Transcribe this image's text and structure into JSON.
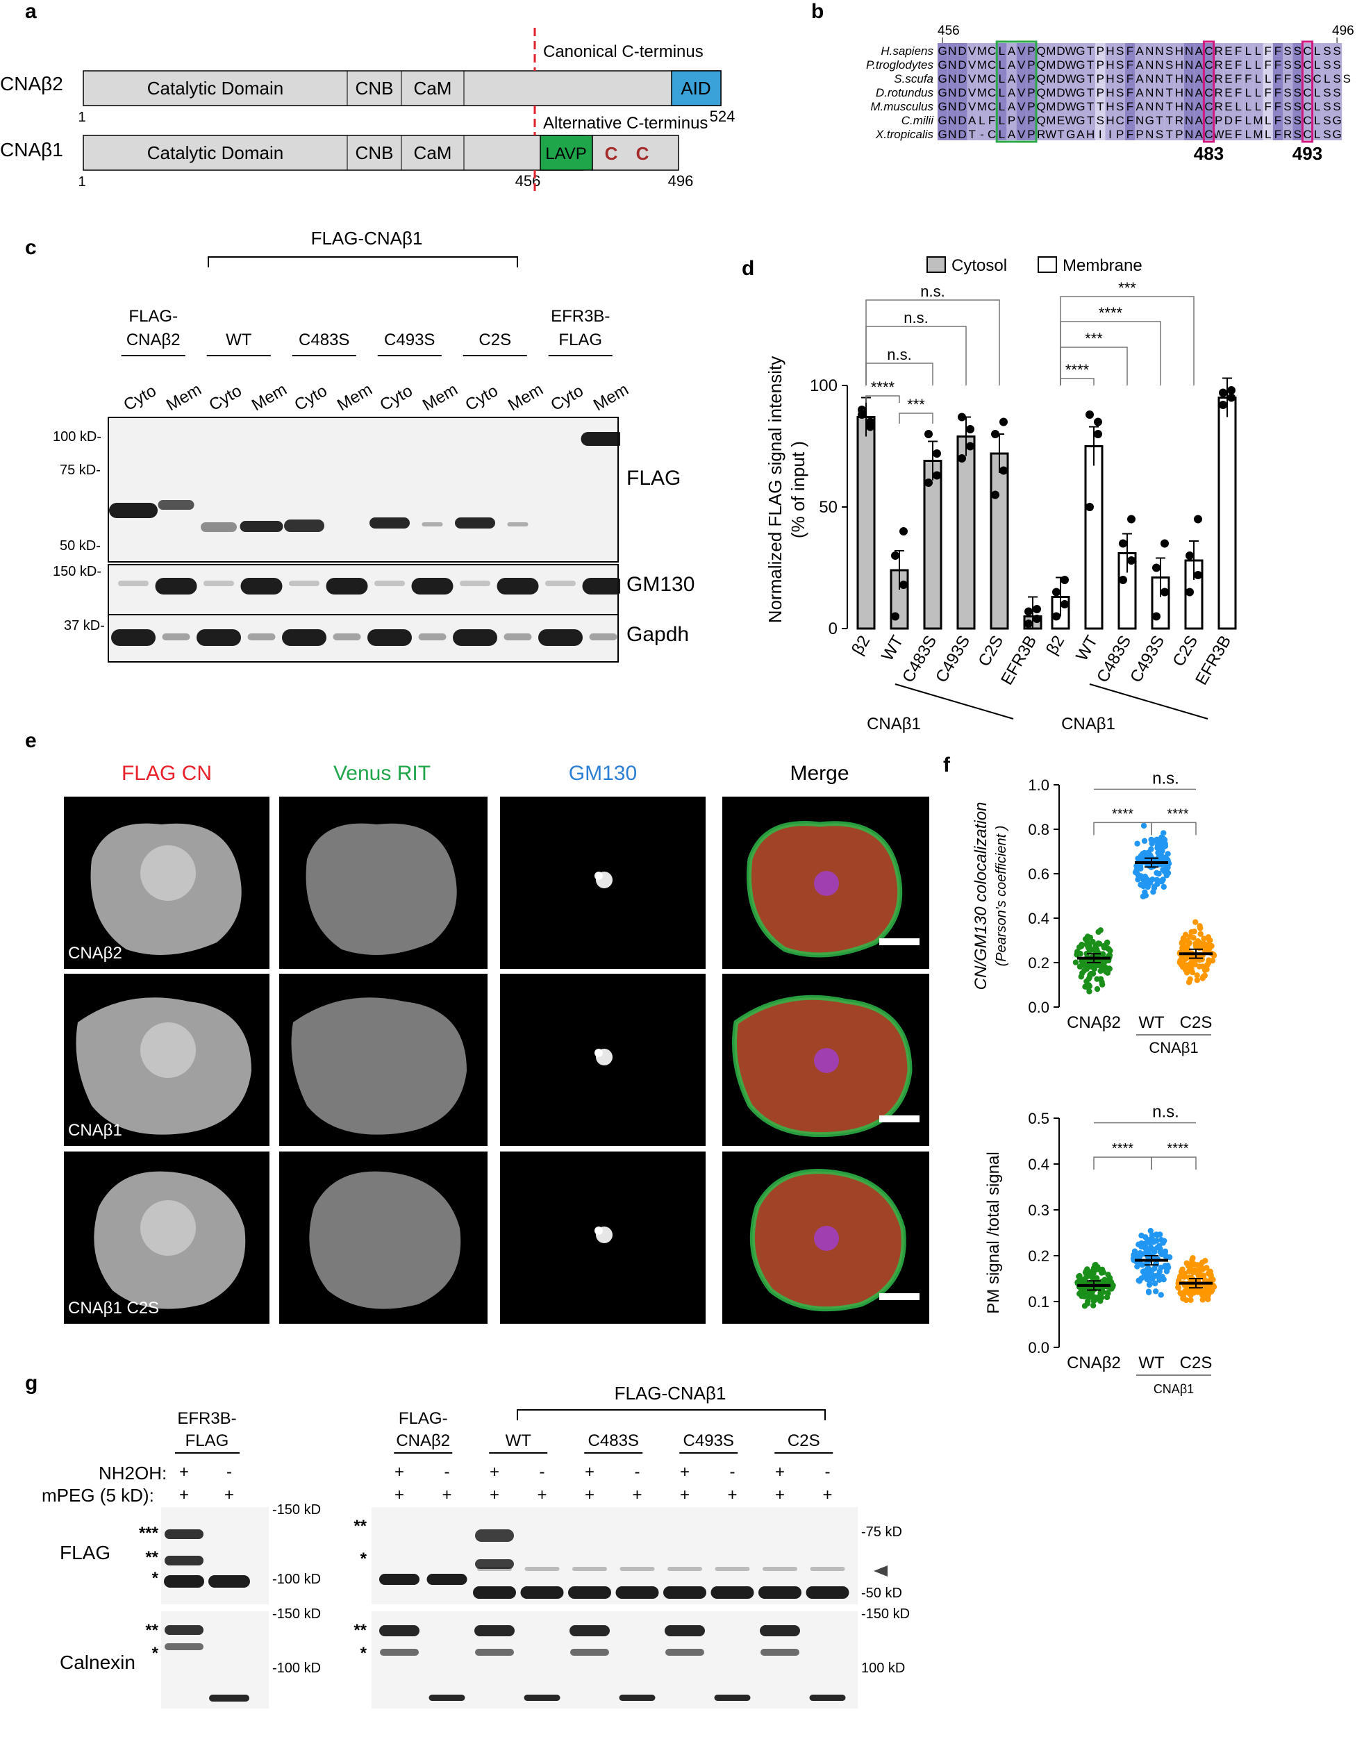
{
  "panels": {
    "a": "a",
    "b": "b",
    "c": "c",
    "d": "d",
    "e": "e",
    "f": "f",
    "g": "g"
  },
  "panel_a": {
    "beta2": {
      "name": "CNAβ2",
      "catalytic": "Catalytic Domain",
      "cnb": "CNB",
      "cam": "CaM",
      "aid": "AID",
      "start": "1",
      "end": "524",
      "cterm": "Canonical C-terminus"
    },
    "beta1": {
      "name": "CNAβ1",
      "catalytic": "Catalytic Domain",
      "cnb": "CNB",
      "cam": "CaM",
      "lavp": "LAVP",
      "c1": "C",
      "c2": "C",
      "start": "1",
      "pos456": "456",
      "end": "496",
      "cterm": "Alternative C-terminus"
    },
    "colors": {
      "domain": "#d9d9d9",
      "aid": "#3aa2d8",
      "lavp": "#1fa64a",
      "cys": "#a52a2a",
      "marker": "#e0202a"
    }
  },
  "panel_b": {
    "start": "456",
    "end": "496",
    "mark1": "483",
    "mark2": "493",
    "species": [
      "H.sapiens",
      "P.troglodytes",
      "S.scufa",
      "D.rotundus",
      "M.musculus",
      "C.milii",
      "X.tropicalis"
    ],
    "sequences": [
      "GNDVMCLAVPQMDWGTPHSFANNSHNACREFLLFFSSCLSS",
      "GNDVMCLAVPQMDWGTPHSFANNSHNACREFLLFFSSCLSS",
      "GNDVMCLAVPQMDWGTPHSFANNTHNACREFFLLFFSSCLSS",
      "GNDVMCLAVPQMDWGTPHSFANNTHNACREFLLFFSSCLSS",
      "GNDVMCLAVPQMDWGTTHSFANNTHNACRELLLFFSSCLSS",
      "GNDALFLPVPQMEWGTSHCFNGTTRNACPDFLMLFSSCLSG",
      "GNDT-CLAVPRWTGAHIIPFPNSTPNACWEFLMLFRSCLSG"
    ],
    "colors": {
      "dark": "#8c84c4",
      "mid": "#b3acd9",
      "light": "#d7d3ec",
      "box_green": "#2aa84a",
      "box_pink": "#d0187f"
    }
  },
  "panel_c": {
    "group_label": "FLAG-CNAβ1",
    "lanes_groups": [
      "FLAG-\nCNAβ2",
      "WT",
      "C483S",
      "C493S",
      "C2S",
      "EFR3B-\nFLAG"
    ],
    "lane_labels": [
      "Cyto",
      "Mem",
      "Cyto",
      "Mem",
      "Cyto",
      "Mem",
      "Cyto",
      "Mem",
      "Cyto",
      "Mem",
      "Cyto",
      "Mem"
    ],
    "blots": [
      "FLAG",
      "GM130",
      "Gapdh"
    ],
    "markers": [
      "100 kD-",
      "75 kD-",
      "50 kD-",
      "150 kD-",
      "37 kD-"
    ]
  },
  "chart_data": [
    {
      "type": "bar",
      "panel": "d",
      "ylabel": "Normalized FLAG signal intensity\n(% of  input )",
      "ylim": [
        0,
        100
      ],
      "yticks": [
        "0",
        "50",
        "100"
      ],
      "legend": [
        "Cytosol",
        "Membrane"
      ],
      "categories": [
        "β2",
        "WT",
        "C483S",
        "C493S",
        "C2S",
        "EFR3B"
      ],
      "group_label": "CNAβ1",
      "series": [
        {
          "name": "Cytosol",
          "values": [
            87,
            24,
            69,
            79,
            72,
            5
          ],
          "color": "#bfbfbf",
          "points": [
            [
              90,
              83,
              88,
              85
            ],
            [
              5,
              18,
              30,
              40
            ],
            [
              60,
              72,
              80,
              63
            ],
            [
              70,
              82,
              87,
              75
            ],
            [
              55,
              65,
              80,
              85
            ],
            [
              2,
              4,
              7,
              8
            ]
          ]
        },
        {
          "name": "Membrane",
          "values": [
            13,
            75,
            31,
            21,
            28,
            95
          ],
          "color": "#ffffff",
          "points": [
            [
              5,
              10,
              15,
              20
            ],
            [
              50,
              80,
              88,
              85
            ],
            [
              20,
              28,
              35,
              45
            ],
            [
              5,
              15,
              25,
              35
            ],
            [
              15,
              22,
              30,
              45
            ],
            [
              92,
              95,
              97,
              98
            ]
          ]
        }
      ],
      "significance": [
        "****",
        "***",
        "n.s.",
        "n.s.",
        "n.s.",
        "****",
        "***",
        "****",
        "***"
      ]
    },
    {
      "type": "scatter",
      "panel": "f-top",
      "ylabel": "CN/GM130 colocalization",
      "ylabel2": "(Pearson's coefficient )",
      "ylim": [
        0,
        1.0
      ],
      "yticks": [
        "0.0",
        "0.2",
        "0.4",
        "0.6",
        "0.8",
        "1.0"
      ],
      "categories": [
        "CNAβ2",
        "WT",
        "C2S"
      ],
      "group_label": "CNAβ1",
      "means": [
        0.22,
        0.65,
        0.24
      ],
      "spread": [
        0.09,
        0.11,
        0.08
      ],
      "colors": [
        "#1a8f1a",
        "#2196f3",
        "#ff9800"
      ],
      "significance": [
        "****",
        "****",
        "n.s."
      ]
    },
    {
      "type": "scatter",
      "panel": "f-bottom",
      "ylabel": "PM signal /total signal",
      "ylim": [
        0,
        0.5
      ],
      "yticks": [
        "0.0",
        "0.1",
        "0.2",
        "0.3",
        "0.4",
        "0.5"
      ],
      "categories": [
        "CNAβ2",
        "WT",
        "C2S"
      ],
      "group_label": "CNAβ1",
      "means": [
        0.135,
        0.19,
        0.14
      ],
      "spread": [
        0.03,
        0.05,
        0.035
      ],
      "colors": [
        "#1a8f1a",
        "#2196f3",
        "#ff9800"
      ],
      "significance": [
        "****",
        "****",
        "n.s."
      ]
    }
  ],
  "panel_e": {
    "channels": [
      "FLAG CN",
      "Venus RIT",
      "GM130",
      "Merge"
    ],
    "channel_colors": [
      "#e8202a",
      "#1fa64a",
      "#2a7fd4",
      "#000000"
    ],
    "rows": [
      "CNAβ2",
      "CNAβ1",
      "CNAβ1 C2S"
    ]
  },
  "panel_g": {
    "left_group": "EFR3B-\nFLAG",
    "right_group": "FLAG-CNAβ1",
    "right_lanes": [
      "FLAG-\nCNAβ2",
      "WT",
      "C483S",
      "C493S",
      "C2S"
    ],
    "row_nh2oh": "NH2OH:",
    "row_mpeg": "mPEG (5 kD):",
    "plus": "+",
    "minus": "-",
    "blots": [
      "FLAG",
      "Calnexin"
    ],
    "stars": [
      "***",
      "**",
      "*"
    ],
    "markers_left": [
      "-150 kD",
      "-100 kD",
      "-150 kD",
      "-100 kD"
    ],
    "markers_right": [
      "-75 kD",
      "-50 kD",
      "-150 kD",
      "100 kD"
    ]
  }
}
